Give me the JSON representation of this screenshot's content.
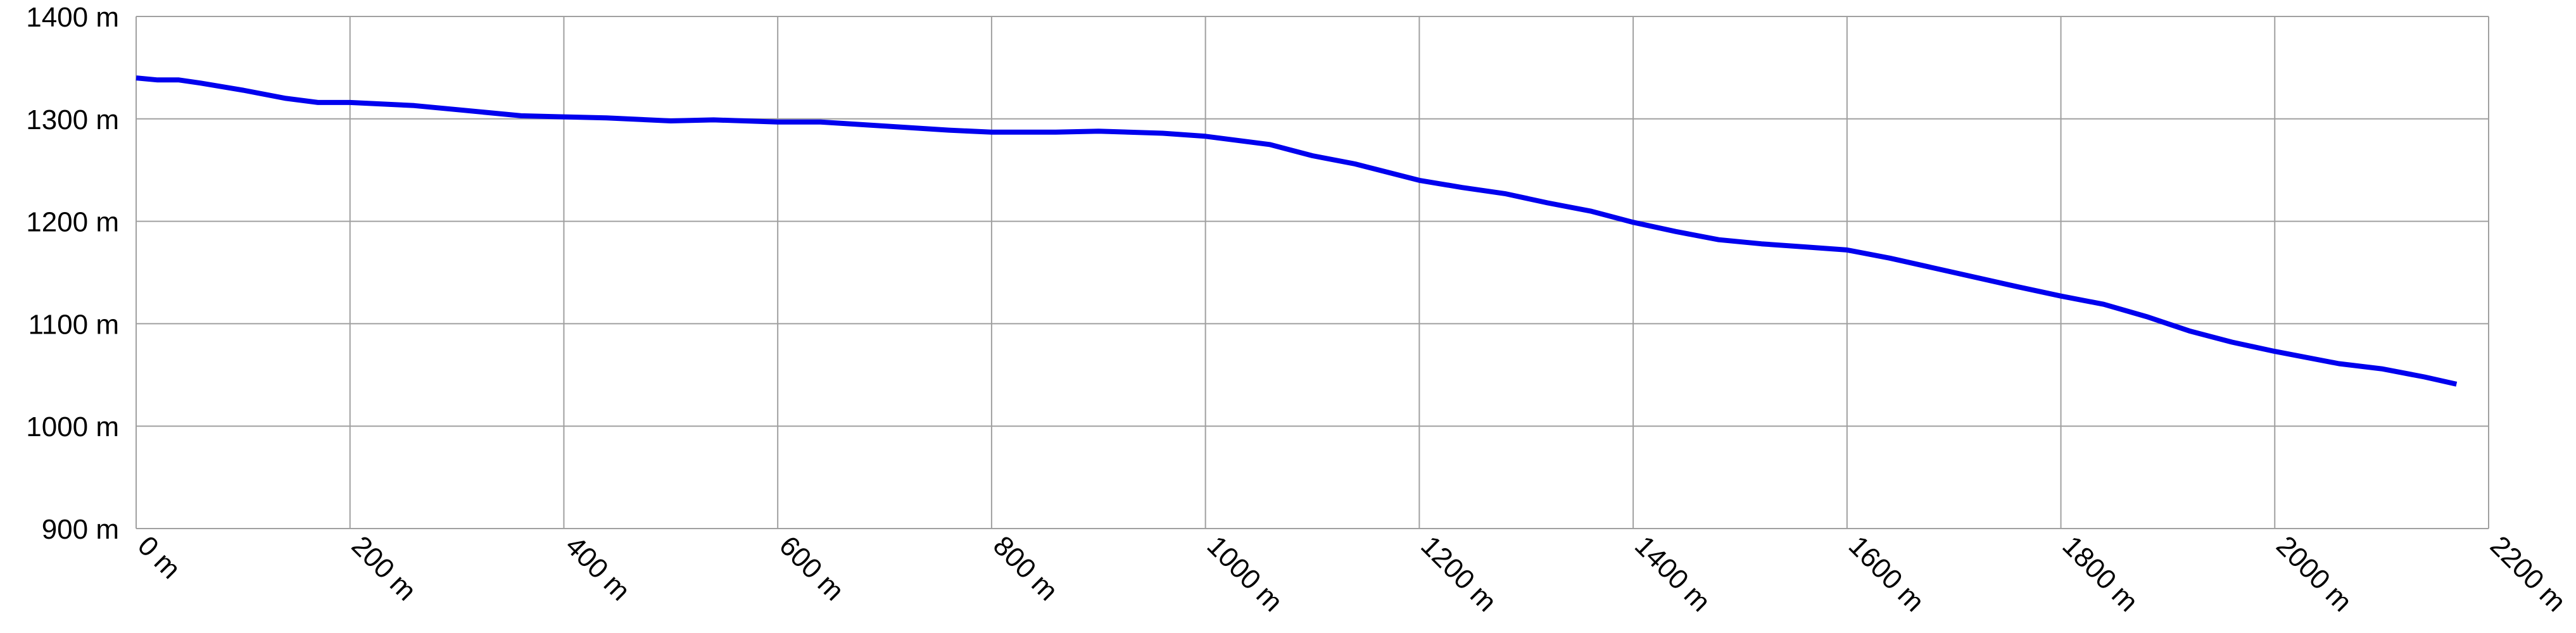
{
  "chart_data": {
    "type": "line",
    "color": "#0000ee",
    "grid": true,
    "x": [
      0,
      20,
      40,
      60,
      100,
      140,
      170,
      200,
      260,
      300,
      360,
      400,
      440,
      500,
      540,
      600,
      640,
      700,
      760,
      800,
      860,
      900,
      960,
      1000,
      1060,
      1100,
      1140,
      1200,
      1240,
      1280,
      1320,
      1360,
      1400,
      1440,
      1480,
      1520,
      1560,
      1600,
      1640,
      1700,
      1760,
      1800,
      1840,
      1880,
      1920,
      1960,
      2000,
      2060,
      2100,
      2140,
      2170
    ],
    "values": [
      1340,
      1338,
      1338,
      1335,
      1328,
      1320,
      1316,
      1316,
      1313,
      1309,
      1303,
      1302,
      1301,
      1298,
      1299,
      1297,
      1297,
      1293,
      1289,
      1287,
      1287,
      1288,
      1286,
      1283,
      1275,
      1264,
      1256,
      1240,
      1233,
      1227,
      1218,
      1210,
      1199,
      1190,
      1182,
      1178,
      1175,
      1172,
      1164,
      1150,
      1136,
      1127,
      1119,
      1107,
      1093,
      1082,
      1073,
      1061,
      1056,
      1048,
      1041
    ],
    "xlim": [
      0,
      2200
    ],
    "xticks": [
      {
        "value": 0,
        "label": "0 m"
      },
      {
        "value": 200,
        "label": "200 m"
      },
      {
        "value": 400,
        "label": "400 m"
      },
      {
        "value": 600,
        "label": "600 m"
      },
      {
        "value": 800,
        "label": "800 m"
      },
      {
        "value": 1000,
        "label": "1000 m"
      },
      {
        "value": 1200,
        "label": "1200 m"
      },
      {
        "value": 1400,
        "label": "1400 m"
      },
      {
        "value": 1600,
        "label": "1600 m"
      },
      {
        "value": 1800,
        "label": "1800 m"
      },
      {
        "value": 2000,
        "label": "2000 m"
      },
      {
        "value": 2200,
        "label": "2200 m"
      }
    ],
    "ylim": [
      900,
      1400
    ],
    "yticks": [
      {
        "value": 900,
        "label": "900 m"
      },
      {
        "value": 1000,
        "label": "1000 m"
      },
      {
        "value": 1100,
        "label": "1100 m"
      },
      {
        "value": 1200,
        "label": "1200 m"
      },
      {
        "value": 1300,
        "label": "1300 m"
      },
      {
        "value": 1400,
        "label": "1400 m"
      }
    ]
  }
}
